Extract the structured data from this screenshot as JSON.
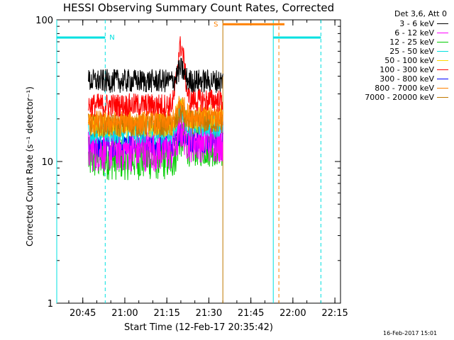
{
  "chart_data": {
    "type": "line",
    "title": "HESSI Observing Summary Count Rates, Corrected",
    "xlabel": "Start Time (12-Feb-17 20:35:42)",
    "ylabel": "Corrected Count Rate (s⁻¹ detector⁻¹)",
    "yscale": "log",
    "ylim": [
      1,
      100
    ],
    "xlim": [
      "20:35:42",
      "22:17:00"
    ],
    "x_ticks": [
      "20:45",
      "21:00",
      "21:15",
      "21:30",
      "21:45",
      "22:00",
      "22:15"
    ],
    "y_ticks": [
      "1",
      "10",
      "100"
    ],
    "legend_title": "Det 3,6, Att 0",
    "legend_position": "top-right, outside plot",
    "data_start": "20:47",
    "data_end": "21:35",
    "series": [
      {
        "name": "3 - 6 keV",
        "color": "#000000",
        "values_before_peak": 37,
        "peak": 45,
        "values_after_peak": 37
      },
      {
        "name": "6 - 12 keV",
        "color": "#ff00ff",
        "values_before_peak": 12,
        "peak": 17,
        "values_after_peak": 14
      },
      {
        "name": "12 - 25 keV",
        "color": "#00cc00",
        "values_before_peak": 10.5,
        "peak": 15,
        "values_after_peak": 13
      },
      {
        "name": "25 - 50 keV",
        "color": "#00e0e0",
        "values_before_peak": 16,
        "peak": 24,
        "values_after_peak": 18
      },
      {
        "name": "50 - 100 keV",
        "color": "#ffd700",
        "values_before_peak": 18,
        "peak": 25,
        "values_after_peak": 20
      },
      {
        "name": "100 - 300 keV",
        "color": "#ff0000",
        "values_before_peak": 25,
        "peak": 65,
        "values_after_peak": 27
      },
      {
        "name": "300 - 800 keV",
        "color": "#0000ff",
        "values_before_peak": 13,
        "peak": 16,
        "values_after_peak": 14
      },
      {
        "name": "800 - 7000 keV",
        "color": "#ff8000",
        "values_before_peak": 19,
        "peak": 26,
        "values_after_peak": 21
      },
      {
        "name": "7000 - 20000 keV",
        "color": "#c07800",
        "values_before_peak": 18,
        "peak": 22,
        "values_after_peak": 19
      }
    ],
    "peak_time": "21:20",
    "night_markers": [
      {
        "label": "N",
        "start": "20:35:42",
        "end": "20:53",
        "color": "#00e0e0"
      },
      {
        "label": "",
        "start": "21:53",
        "end": "22:10",
        "color": "#00e0e0"
      }
    ],
    "saa_marker": {
      "label": "S",
      "start": "21:35",
      "end": "21:57",
      "color": "#ff8000"
    },
    "vertical_lines": [
      {
        "time": "20:35:42",
        "color": "#00e0e0",
        "style": "solid"
      },
      {
        "time": "20:53",
        "color": "#00e0e0",
        "style": "dashed"
      },
      {
        "time": "21:35",
        "color": "#c07800",
        "style": "solid"
      },
      {
        "time": "21:53",
        "color": "#00e0e0",
        "style": "solid"
      },
      {
        "time": "21:55",
        "color": "#ff8000",
        "style": "dashed"
      },
      {
        "time": "22:10",
        "color": "#00e0e0",
        "style": "dashed"
      }
    ]
  },
  "footer": {
    "timestamp": "16-Feb-2017 15:01"
  }
}
